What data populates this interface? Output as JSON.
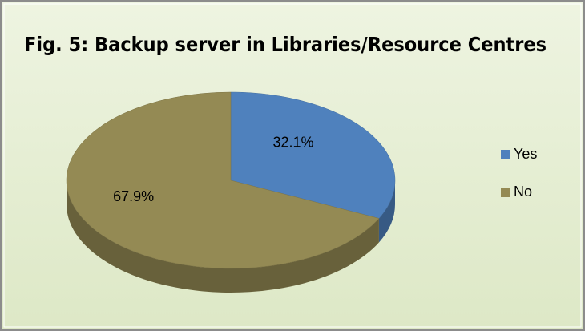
{
  "chart_data": {
    "type": "pie",
    "title": "Fig. 5: Backup server in Libraries/Resource Centres",
    "categories": [
      "Yes",
      "No"
    ],
    "values": [
      32.1,
      67.9
    ],
    "value_labels": [
      "32.1%",
      "67.9%"
    ],
    "colors": [
      "#4f81bd",
      "#948a54"
    ],
    "legend": "right"
  }
}
